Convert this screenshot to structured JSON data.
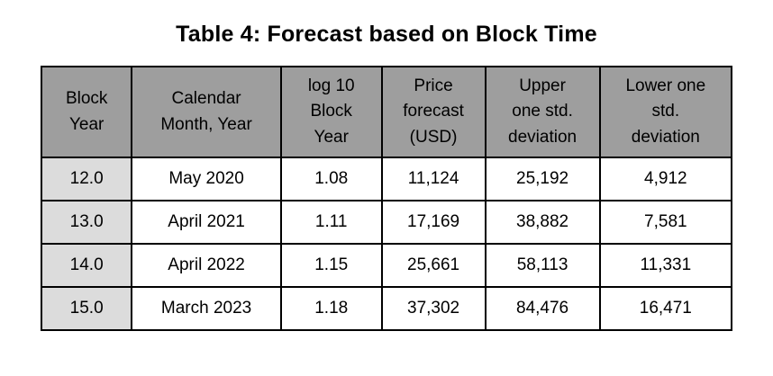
{
  "title": "Table 4: Forecast based on Block Time",
  "colors": {
    "header_bg": "#9e9e9e",
    "first_col_bg": "#dcdcdc",
    "border": "#000000",
    "cell_bg": "#ffffff"
  },
  "table": {
    "headers": [
      "Block\nYear",
      "Calendar\nMonth, Year",
      "log 10\nBlock\nYear",
      "Price\nforecast\n(USD)",
      "Upper\none std.\ndeviation",
      "Lower one\nstd.\ndeviation"
    ],
    "rows": [
      [
        "12.0",
        "May 2020",
        "1.08",
        "11,124",
        "25,192",
        "4,912"
      ],
      [
        "13.0",
        "April 2021",
        "1.11",
        "17,169",
        "38,882",
        "7,581"
      ],
      [
        "14.0",
        "April 2022",
        "1.15",
        "25,661",
        "58,113",
        "11,331"
      ],
      [
        "15.0",
        "March 2023",
        "1.18",
        "37,302",
        "84,476",
        "16,471"
      ]
    ]
  }
}
